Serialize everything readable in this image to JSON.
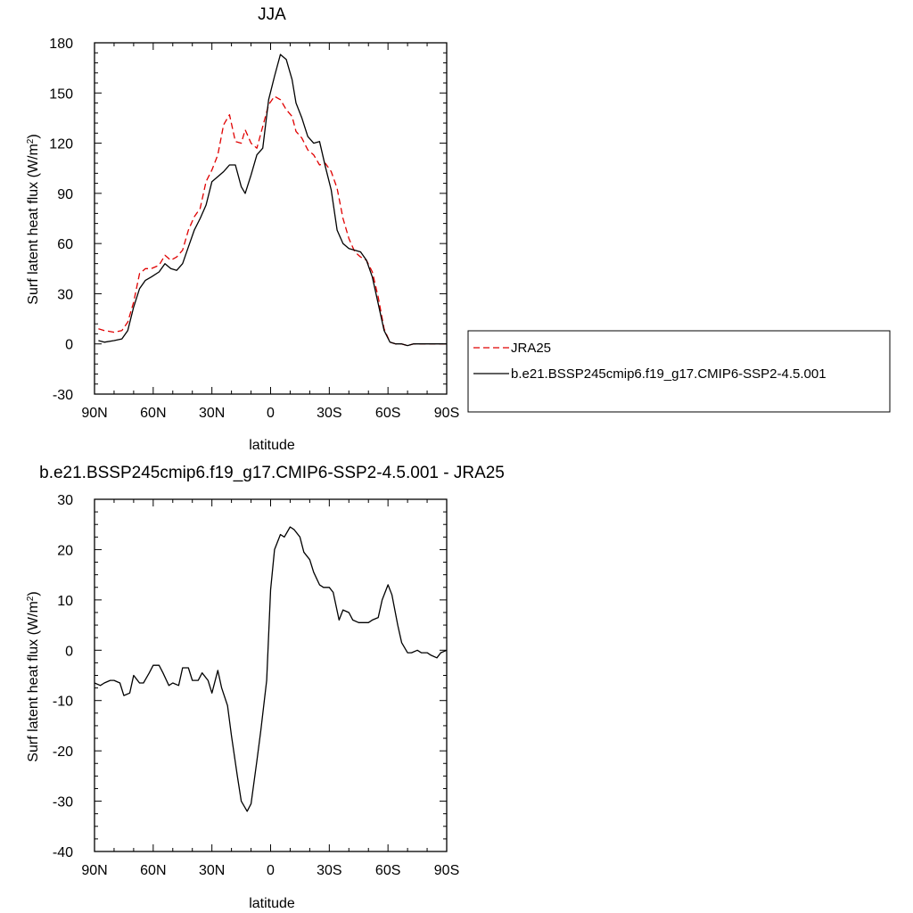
{
  "x_tick_labels": [
    "90N",
    "60N",
    "30N",
    "0",
    "30S",
    "60S",
    "90S"
  ],
  "legend": {
    "entries": [
      "JRA25",
      "b.e21.BSSP245cmip6.f19_g17.CMIP6-SSP2-4.5.001"
    ]
  },
  "colors": {
    "jra25": "#e00000",
    "model": "#000000",
    "diff": "#000000"
  },
  "chart_data": [
    {
      "type": "line",
      "title": "JJA",
      "xlabel": "latitude",
      "ylabel": "Surf latent heat flux (W/m²)",
      "ylabel_parts": {
        "main": "Surf latent heat flux (W/m",
        "sup": "2",
        "end": ")"
      },
      "xlim": [
        -90,
        90
      ],
      "ylim": [
        -30,
        180
      ],
      "yticks": [
        -30,
        0,
        30,
        60,
        90,
        120,
        150,
        180
      ],
      "xticks": [
        -90,
        -60,
        -30,
        0,
        30,
        60,
        90
      ],
      "x_note": "negative = N, positive = S",
      "series": [
        {
          "name": "JRA25",
          "style": "dashed",
          "x": [
            -88,
            -85,
            -80,
            -76,
            -73,
            -70,
            -67,
            -64,
            -61,
            -57,
            -54,
            -51,
            -48,
            -45,
            -42,
            -39,
            -36,
            -33,
            -30,
            -27,
            -24,
            -21,
            -18,
            -15,
            -13,
            -10,
            -7,
            -4,
            -1,
            2,
            5,
            8,
            11,
            13,
            16,
            19,
            22,
            25,
            28,
            31,
            34,
            37,
            40,
            43,
            46,
            49,
            52,
            55,
            58,
            61,
            64,
            67,
            70,
            73,
            76,
            79,
            82,
            85,
            88,
            90
          ],
          "values": [
            9,
            8,
            7,
            8,
            13,
            25,
            42,
            45,
            45,
            47,
            53,
            50,
            52,
            56,
            68,
            76,
            81,
            97,
            104,
            113,
            131,
            137,
            121,
            120,
            128,
            120,
            117,
            130,
            143,
            148,
            146,
            140,
            136,
            127,
            123,
            116,
            113,
            107,
            108,
            103,
            93,
            75,
            63,
            55,
            52,
            50,
            43,
            28,
            9,
            1,
            0,
            0,
            -1,
            0,
            0,
            0,
            0,
            0,
            0,
            0
          ]
        },
        {
          "name": "b.e21.BSSP245cmip6.f19_g17.CMIP6-SSP2-4.5.001",
          "style": "solid",
          "x": [
            -88,
            -85,
            -80,
            -76,
            -73,
            -70,
            -67,
            -64,
            -61,
            -57,
            -54,
            -51,
            -48,
            -45,
            -42,
            -39,
            -36,
            -33,
            -30,
            -27,
            -24,
            -21,
            -18,
            -15,
            -13,
            -10,
            -7,
            -4,
            -1,
            2,
            5,
            8,
            11,
            13,
            16,
            19,
            22,
            25,
            28,
            31,
            34,
            37,
            40,
            43,
            46,
            49,
            52,
            55,
            58,
            61,
            64,
            67,
            70,
            73,
            76,
            79,
            82,
            85,
            88,
            90
          ],
          "values": [
            2,
            1,
            2,
            3,
            8,
            22,
            33,
            38,
            40,
            43,
            48,
            45,
            44,
            48,
            58,
            68,
            75,
            83,
            97,
            100,
            103,
            107,
            107,
            94,
            90,
            101,
            113,
            117,
            146,
            160,
            173,
            170,
            158,
            144,
            135,
            124,
            120,
            121,
            106,
            92,
            68,
            60,
            57,
            56,
            55,
            50,
            40,
            24,
            8,
            1,
            0,
            0,
            -1,
            0,
            0,
            0,
            0,
            0,
            0,
            0
          ]
        }
      ]
    },
    {
      "type": "line",
      "title": "b.e21.BSSP245cmip6.f19_g17.CMIP6-SSP2-4.5.001 - JRA25",
      "xlabel": "latitude",
      "ylabel": "Surf latent heat flux (W/m²)",
      "ylabel_parts": {
        "main": "Surf latent heat flux (W/m",
        "sup": "2",
        "end": ")"
      },
      "xlim": [
        -90,
        90
      ],
      "ylim": [
        -40,
        30
      ],
      "yticks": [
        -40,
        -30,
        -20,
        -10,
        0,
        10,
        20,
        30
      ],
      "xticks": [
        -90,
        -60,
        -30,
        0,
        30,
        60,
        90
      ],
      "series": [
        {
          "name": "b.e21.BSSP245cmip6.f19_g17.CMIP6-SSP2-4.5.001 - JRA25",
          "style": "solid",
          "x": [
            -90,
            -87,
            -85,
            -82,
            -80,
            -77,
            -75,
            -72,
            -70,
            -67,
            -65,
            -62,
            -60,
            -57,
            -55,
            -52,
            -50,
            -47,
            -45,
            -42,
            -40,
            -37,
            -35,
            -32,
            -30,
            -27,
            -25,
            -22,
            -20,
            -17,
            -15,
            -12,
            -10,
            -7,
            -5,
            -2,
            0,
            2,
            5,
            7,
            10,
            12,
            15,
            17,
            20,
            22,
            25,
            27,
            30,
            32,
            35,
            37,
            40,
            42,
            45,
            47,
            50,
            52,
            55,
            57,
            60,
            62,
            65,
            67,
            70,
            72,
            75,
            77,
            80,
            82,
            85,
            87,
            90
          ],
          "values": [
            -6.5,
            -7,
            -6.5,
            -6,
            -6,
            -6.5,
            -9,
            -8.5,
            -5,
            -6.5,
            -6.5,
            -4.5,
            -3,
            -3,
            -4.5,
            -7,
            -6.5,
            -7,
            -3.5,
            -3.5,
            -6,
            -6,
            -4.5,
            -6,
            -8.5,
            -4,
            -7.5,
            -11,
            -17,
            -25,
            -30,
            -32,
            -30.5,
            -22,
            -16,
            -6,
            12,
            20,
            23,
            22.5,
            24.5,
            24,
            22.5,
            19.5,
            18,
            15.5,
            13,
            12.5,
            12.5,
            11.5,
            6,
            8,
            7.5,
            6,
            5.5,
            5.5,
            5.5,
            6,
            6.5,
            10,
            13,
            11,
            5,
            1.5,
            -0.5,
            -0.5,
            0,
            -0.5,
            -0.5,
            -1,
            -1.5,
            -0.5,
            0
          ]
        }
      ]
    }
  ]
}
